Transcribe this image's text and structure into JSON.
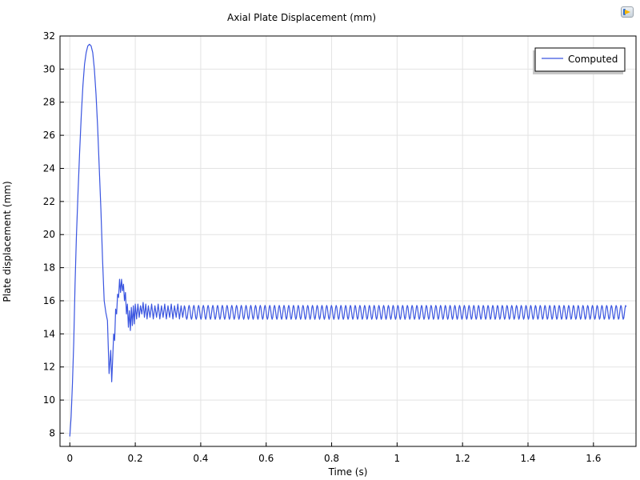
{
  "icons": {
    "corner_logo": "app-logo-icon"
  },
  "colors": {
    "series": "#3a55e0",
    "grid": "#e3e3e3",
    "axis": "#000000"
  },
  "chart_data": {
    "type": "line",
    "title": "Axial Plate Displacement (mm)",
    "xlabel": "Time (s)",
    "ylabel": "Plate displacement (mm)",
    "xlim": [
      -0.03,
      1.73
    ],
    "ylim": [
      7.2,
      32
    ],
    "xticks": [
      0,
      0.2,
      0.4,
      0.6,
      0.8,
      1,
      1.2,
      1.4,
      1.6
    ],
    "xtick_labels": [
      "0",
      "0.2",
      "0.4",
      "0.6",
      "0.8",
      "1",
      "1.2",
      "1.4",
      "1.6"
    ],
    "yticks": [
      8,
      10,
      12,
      14,
      16,
      18,
      20,
      22,
      24,
      26,
      28,
      30,
      32
    ],
    "ytick_labels": [
      "8",
      "10",
      "12",
      "14",
      "16",
      "18",
      "20",
      "22",
      "24",
      "26",
      "28",
      "30",
      "32"
    ],
    "grid": true,
    "legend": {
      "position": "top-right",
      "entries": [
        "Computed"
      ]
    },
    "series": [
      {
        "name": "Computed",
        "x": [
          0,
          0.004,
          0.008,
          0.012,
          0.016,
          0.02,
          0.025,
          0.03,
          0.035,
          0.04,
          0.045,
          0.05,
          0.055,
          0.06,
          0.065,
          0.07,
          0.075,
          0.08,
          0.085,
          0.09,
          0.095,
          0.1,
          0.105,
          0.11,
          0.115,
          0.12,
          0.125,
          0.128,
          0.131,
          0.134,
          0.137,
          0.14,
          0.143,
          0.146,
          0.149,
          0.152,
          0.155,
          0.158,
          0.161,
          0.164,
          0.167,
          0.17,
          0.173,
          0.176,
          0.179,
          0.182,
          0.185,
          0.188,
          0.191,
          0.194,
          0.197,
          0.2,
          0.204,
          0.208,
          0.212,
          0.216,
          0.22,
          0.224,
          0.228,
          0.232,
          0.236,
          0.24,
          0.245,
          0.25,
          0.255,
          0.26,
          0.265,
          0.27,
          0.275,
          0.28,
          0.285,
          0.29,
          0.295,
          0.3,
          0.305,
          0.31,
          0.315,
          0.32,
          0.325,
          0.33,
          0.335,
          0.34,
          0.345,
          0.35
        ],
        "y": [
          7.8,
          9.0,
          11.0,
          13.5,
          17.0,
          19.8,
          22.5,
          25.0,
          27.2,
          29.0,
          30.3,
          31.0,
          31.4,
          31.5,
          31.4,
          31.0,
          30.0,
          28.5,
          26.5,
          24.0,
          21.5,
          18.5,
          16.0,
          15.3,
          14.8,
          11.6,
          13.0,
          11.1,
          12.5,
          14.0,
          13.6,
          15.5,
          15.2,
          16.4,
          16.2,
          17.3,
          16.5,
          17.3,
          16.6,
          17.0,
          16.0,
          16.5,
          15.2,
          15.8,
          14.4,
          15.4,
          14.2,
          15.6,
          14.5,
          15.7,
          14.6,
          15.8,
          14.9,
          15.8,
          15.0,
          15.7,
          15.2,
          15.9,
          15.0,
          15.8,
          14.9,
          15.7,
          15.0,
          15.8,
          14.9,
          15.7,
          15.0,
          15.8,
          14.9,
          15.7,
          15.0,
          15.8,
          14.9,
          15.7,
          15.0,
          15.8,
          14.9,
          15.7,
          15.0,
          15.8,
          14.9,
          15.7,
          15.0,
          15.7
        ]
      }
    ],
    "steady_oscillation": {
      "x_start": 0.35,
      "x_end": 1.7,
      "mean": 15.3,
      "amplitude": 0.42,
      "period": 0.0145
    }
  }
}
